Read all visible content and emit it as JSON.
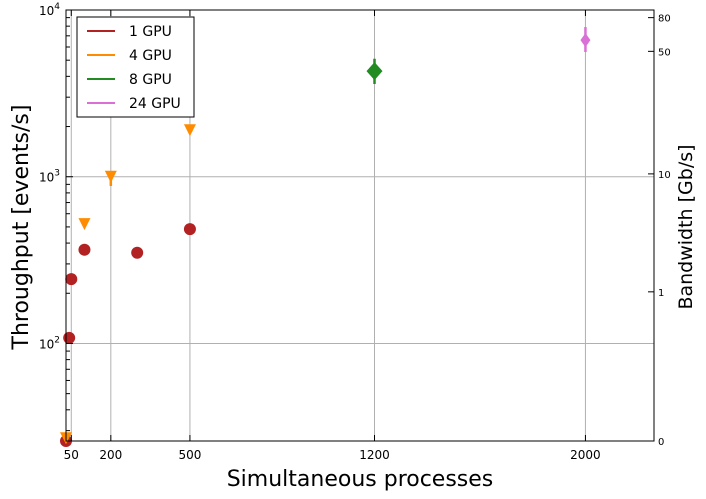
{
  "chart_data": {
    "type": "scatter",
    "xlabel": "Simultaneous processes",
    "ylabel": "Throughput [events/s]",
    "y2label": "Bandwidth [Gb/s]",
    "xlim": [
      30,
      2260
    ],
    "ylim": [
      26,
      10000
    ],
    "yscale": "log",
    "x_ticks": [
      50,
      200,
      500,
      1200,
      2000
    ],
    "x_tick_labels": [
      "50",
      "200",
      "500",
      "1200",
      "2000"
    ],
    "y_ticks": [
      100,
      1000,
      10000
    ],
    "y_tick_labels": [
      "10",
      "10",
      "10"
    ],
    "y_tick_exponents": [
      "2",
      "3",
      "4"
    ],
    "y2_ticks": [
      {
        "label": "0",
        "value": 26
      },
      {
        "label": "1",
        "value": 204
      },
      {
        "label": "10",
        "value": 1040
      },
      {
        "label": "50",
        "value": 5650
      },
      {
        "label": "80",
        "value": 9000
      }
    ],
    "grid": true,
    "legend_position": "top-left",
    "series": [
      {
        "name": "1 GPU",
        "color": "#b22222",
        "marker": "circle",
        "points": [
          {
            "x": 30,
            "y": 26
          },
          {
            "x": 42,
            "y": 108
          },
          {
            "x": 50,
            "y": 243
          },
          {
            "x": 100,
            "y": 365
          },
          {
            "x": 300,
            "y": 350
          },
          {
            "x": 500,
            "y": 485
          }
        ]
      },
      {
        "name": "4 GPU",
        "color": "#ff8c00",
        "marker": "triangle-down",
        "points": [
          {
            "x": 30,
            "y": 27
          },
          {
            "x": 100,
            "y": 520
          },
          {
            "x": 200,
            "y": 1000,
            "err": [
              880,
              1080
            ]
          },
          {
            "x": 500,
            "y": 1900
          }
        ]
      },
      {
        "name": "8 GPU",
        "color": "#228b22",
        "marker": "diamond",
        "points": [
          {
            "x": 1200,
            "y": 4300,
            "err": [
              3600,
              5100
            ]
          }
        ]
      },
      {
        "name": "24 GPU",
        "color": "#da70d6",
        "marker": "diamond-thin",
        "points": [
          {
            "x": 2000,
            "y": 6600,
            "err": [
              5600,
              7900
            ]
          }
        ]
      }
    ]
  }
}
